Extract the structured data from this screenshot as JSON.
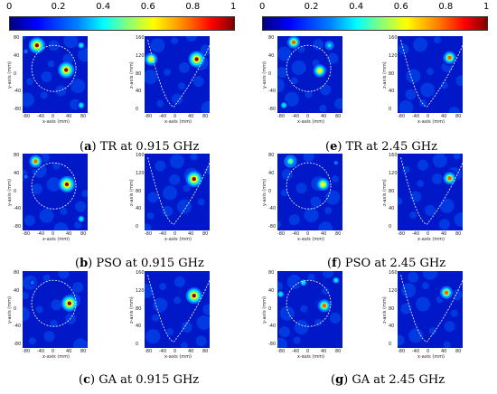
{
  "colorbar": {
    "ticks": [
      "0",
      "0.2",
      "0.4",
      "0.6",
      "0.8",
      "1"
    ]
  },
  "captions": {
    "a": {
      "letter": "a",
      "text": "TR at 0.915 GHz"
    },
    "b": {
      "letter": "b",
      "text": "PSO at 0.915 GHz"
    },
    "c": {
      "letter": "c",
      "text": "GA at 0.915 GHz"
    },
    "e": {
      "letter": "e",
      "text": "TR at 2.45 GHz"
    },
    "f": {
      "letter": "f",
      "text": "PSO at 2.45 GHz"
    },
    "g": {
      "letter": "g",
      "text": "GA at 2.45 GHz"
    }
  },
  "axes": {
    "x_label": "x-axis (mm)",
    "y_label": "y-axis (mm)",
    "z_label": "z-axis (mm)",
    "xy_x_ticks": [
      "-80",
      "-40",
      "0",
      "40",
      "80"
    ],
    "xy_y_ticks": [
      "80",
      "40",
      "0",
      "-40",
      "-80"
    ],
    "xz_x_ticks": [
      "-80",
      "-40",
      "0",
      "40",
      "80"
    ],
    "xz_z_ticks": [
      "160",
      "120",
      "80",
      "40",
      "0"
    ]
  },
  "colors": {
    "background": "#0018c8",
    "hot": "#8b0000",
    "contour": "#ffffff"
  }
}
